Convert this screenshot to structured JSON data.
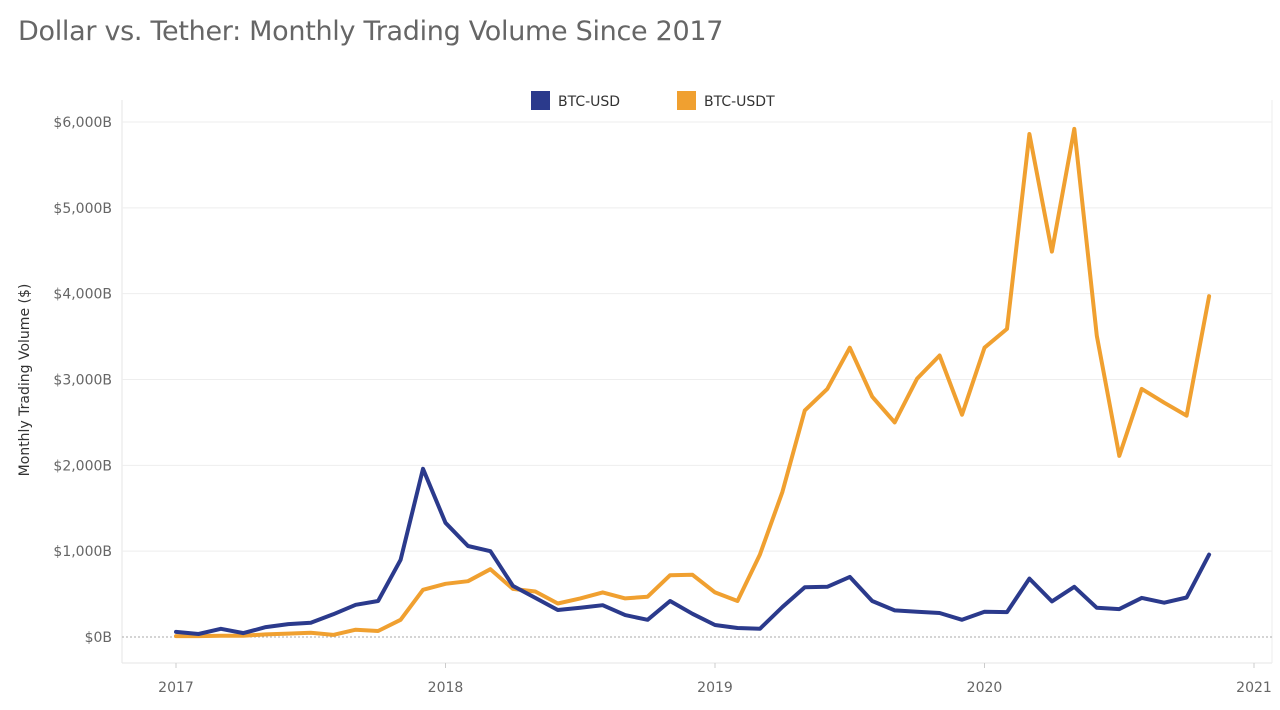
{
  "chart_data": {
    "type": "line",
    "title": "Dollar vs. Tether: Monthly Trading Volume Since 2017",
    "xlabel": "",
    "ylabel": "Monthly Trading Volume ($)",
    "ylim": [
      0,
      6000
    ],
    "y_ticks": [
      "$0B",
      "$1,000B",
      "$2,000B",
      "$3,000B",
      "$4,000B",
      "$5,000B",
      "$6,000B"
    ],
    "x_ticks": [
      "2017",
      "2018",
      "2019",
      "2020",
      "2021"
    ],
    "x_start": "2017-01",
    "x_frequency": "monthly",
    "legend_position": "top",
    "grid": true,
    "series": [
      {
        "name": "BTC-USD",
        "color": "#2b3a8c",
        "values": [
          60,
          35,
          95,
          45,
          115,
          150,
          165,
          265,
          375,
          420,
          900,
          1960,
          1330,
          1060,
          1000,
          595,
          455,
          315,
          340,
          370,
          255,
          200,
          420,
          270,
          140,
          105,
          95,
          350,
          580,
          585,
          700,
          420,
          310,
          295,
          280,
          200,
          295,
          290,
          680,
          415,
          585,
          340,
          325,
          455,
          400,
          460,
          960
        ]
      },
      {
        "name": "BTC-USDT",
        "color": "#f0a030",
        "values": [
          10,
          10,
          15,
          15,
          30,
          40,
          50,
          25,
          85,
          70,
          200,
          550,
          620,
          650,
          790,
          560,
          530,
          390,
          450,
          520,
          450,
          470,
          720,
          725,
          520,
          420,
          960,
          1690,
          2640,
          2890,
          3370,
          2800,
          2500,
          3010,
          3280,
          2590,
          3370,
          3590,
          5860,
          4490,
          5920,
          3510,
          2110,
          2890,
          2730,
          2580,
          3970
        ]
      }
    ]
  }
}
